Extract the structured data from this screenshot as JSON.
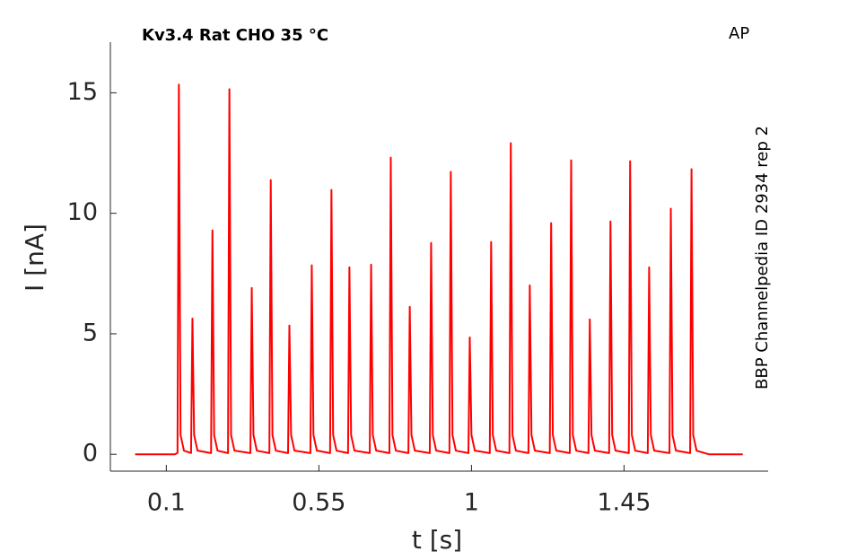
{
  "chart_data": {
    "type": "line",
    "title": "Kv3.4  Rat  CHO  35 °C",
    "corner_label": "AP",
    "side_label": "BBP Channelpedia ID 2934 rep 2",
    "x_label": "t [s]",
    "y_label": "I [nA]",
    "color": "#ff0000",
    "xlim": [
      -0.065,
      1.875
    ],
    "ylim": [
      -0.7,
      17.1
    ],
    "xticks": [
      0.1,
      0.55,
      1,
      1.45
    ],
    "yticks": [
      0,
      5,
      10,
      15
    ],
    "x": [
      0.008,
      0.125,
      0.133,
      0.137,
      0.142,
      0.152,
      0.173,
      0.177,
      0.182,
      0.192,
      0.232,
      0.236,
      0.241,
      0.251,
      0.282,
      0.286,
      0.291,
      0.301,
      0.348,
      0.352,
      0.357,
      0.367,
      0.404,
      0.408,
      0.413,
      0.423,
      0.459,
      0.463,
      0.468,
      0.478,
      0.525,
      0.529,
      0.534,
      0.544,
      0.583,
      0.587,
      0.592,
      0.602,
      0.636,
      0.64,
      0.645,
      0.655,
      0.7,
      0.704,
      0.709,
      0.719,
      0.758,
      0.762,
      0.767,
      0.777,
      0.814,
      0.818,
      0.823,
      0.833,
      0.877,
      0.881,
      0.886,
      0.896,
      0.935,
      0.939,
      0.944,
      0.954,
      0.991,
      0.995,
      1.0,
      1.01,
      1.054,
      1.058,
      1.063,
      1.073,
      1.112,
      1.116,
      1.121,
      1.131,
      1.168,
      1.172,
      1.177,
      1.187,
      1.231,
      1.235,
      1.24,
      1.25,
      1.29,
      1.294,
      1.299,
      1.309,
      1.345,
      1.349,
      1.354,
      1.364,
      1.406,
      1.41,
      1.415,
      1.425,
      1.464,
      1.468,
      1.473,
      1.483,
      1.52,
      1.524,
      1.529,
      1.539,
      1.584,
      1.588,
      1.593,
      1.603,
      1.645,
      1.649,
      1.654,
      1.664,
      1.7,
      1.8
    ],
    "values": [
      0,
      0,
      0.05,
      15.34,
      0.8,
      0.15,
      0.05,
      5.63,
      0.8,
      0.15,
      0.05,
      9.29,
      0.8,
      0.15,
      0.05,
      15.15,
      0.8,
      0.15,
      0.05,
      6.9,
      0.8,
      0.15,
      0.05,
      11.38,
      0.8,
      0.15,
      0.05,
      5.34,
      0.8,
      0.15,
      0.05,
      7.84,
      0.8,
      0.15,
      0.05,
      10.97,
      0.8,
      0.15,
      0.05,
      7.76,
      0.8,
      0.15,
      0.05,
      7.87,
      0.8,
      0.15,
      0.05,
      12.31,
      0.8,
      0.15,
      0.05,
      6.12,
      0.8,
      0.15,
      0.05,
      8.77,
      0.8,
      0.15,
      0.05,
      11.72,
      0.8,
      0.15,
      0.05,
      4.85,
      0.8,
      0.15,
      0.05,
      8.81,
      0.8,
      0.15,
      0.05,
      12.91,
      0.8,
      0.15,
      0.05,
      7.01,
      0.8,
      0.15,
      0.05,
      9.59,
      0.8,
      0.15,
      0.05,
      12.2,
      0.8,
      0.15,
      0.05,
      5.6,
      0.8,
      0.15,
      0.05,
      9.66,
      0.8,
      0.15,
      0.05,
      12.16,
      0.8,
      0.15,
      0.05,
      7.76,
      0.8,
      0.15,
      0.05,
      10.19,
      0.8,
      0.15,
      0.05,
      11.83,
      0.8,
      0.15,
      0,
      0
    ]
  }
}
